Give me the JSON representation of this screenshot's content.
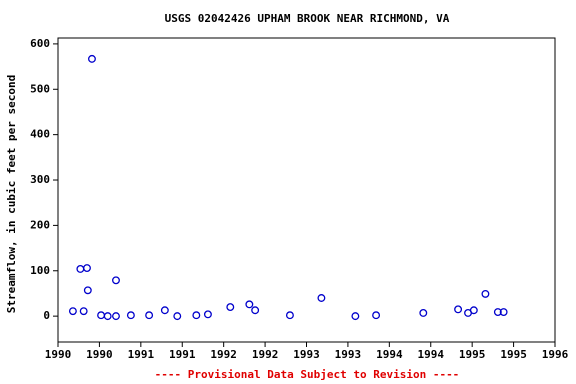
{
  "chart_data": {
    "type": "scatter",
    "title": "USGS 02042426 UPHAM BROOK NEAR RICHMOND, VA",
    "ylabel": "Streamflow, in cubic feet per second",
    "footnote": "---- Provisional Data Subject to Revision ----",
    "xlim": [
      1990,
      1996
    ],
    "ylim": [
      -57,
      613
    ],
    "xticks": [
      {
        "value": 1990,
        "label": "1990"
      },
      {
        "value": 1990.5,
        "label": "1990"
      },
      {
        "value": 1991,
        "label": "1991"
      },
      {
        "value": 1991.5,
        "label": "1991"
      },
      {
        "value": 1992,
        "label": "1992"
      },
      {
        "value": 1992.5,
        "label": "1992"
      },
      {
        "value": 1993,
        "label": "1993"
      },
      {
        "value": 1993.5,
        "label": "1993"
      },
      {
        "value": 1994,
        "label": "1994"
      },
      {
        "value": 1994.5,
        "label": "1994"
      },
      {
        "value": 1995,
        "label": "1995"
      },
      {
        "value": 1995.5,
        "label": "1995"
      },
      {
        "value": 1996,
        "label": "1996"
      }
    ],
    "yticks": [
      0,
      100,
      200,
      300,
      400,
      500,
      600
    ],
    "color": "#0000cc",
    "x": [
      1990.18,
      1990.27,
      1990.31,
      1990.35,
      1990.36,
      1990.41,
      1990.52,
      1990.6,
      1990.7,
      1990.7,
      1990.88,
      1991.1,
      1991.29,
      1991.44,
      1991.67,
      1991.81,
      1992.08,
      1992.31,
      1992.38,
      1992.8,
      1993.18,
      1993.59,
      1993.84,
      1994.41,
      1994.83,
      1994.95,
      1995.02,
      1995.16,
      1995.31,
      1995.38
    ],
    "values": [
      11,
      104,
      11,
      106,
      57,
      567,
      2,
      0,
      0,
      79,
      2,
      2,
      13,
      0,
      2,
      4,
      20,
      26,
      13,
      2,
      40,
      0,
      2,
      7,
      15,
      7,
      13,
      49,
      9,
      9
    ]
  }
}
